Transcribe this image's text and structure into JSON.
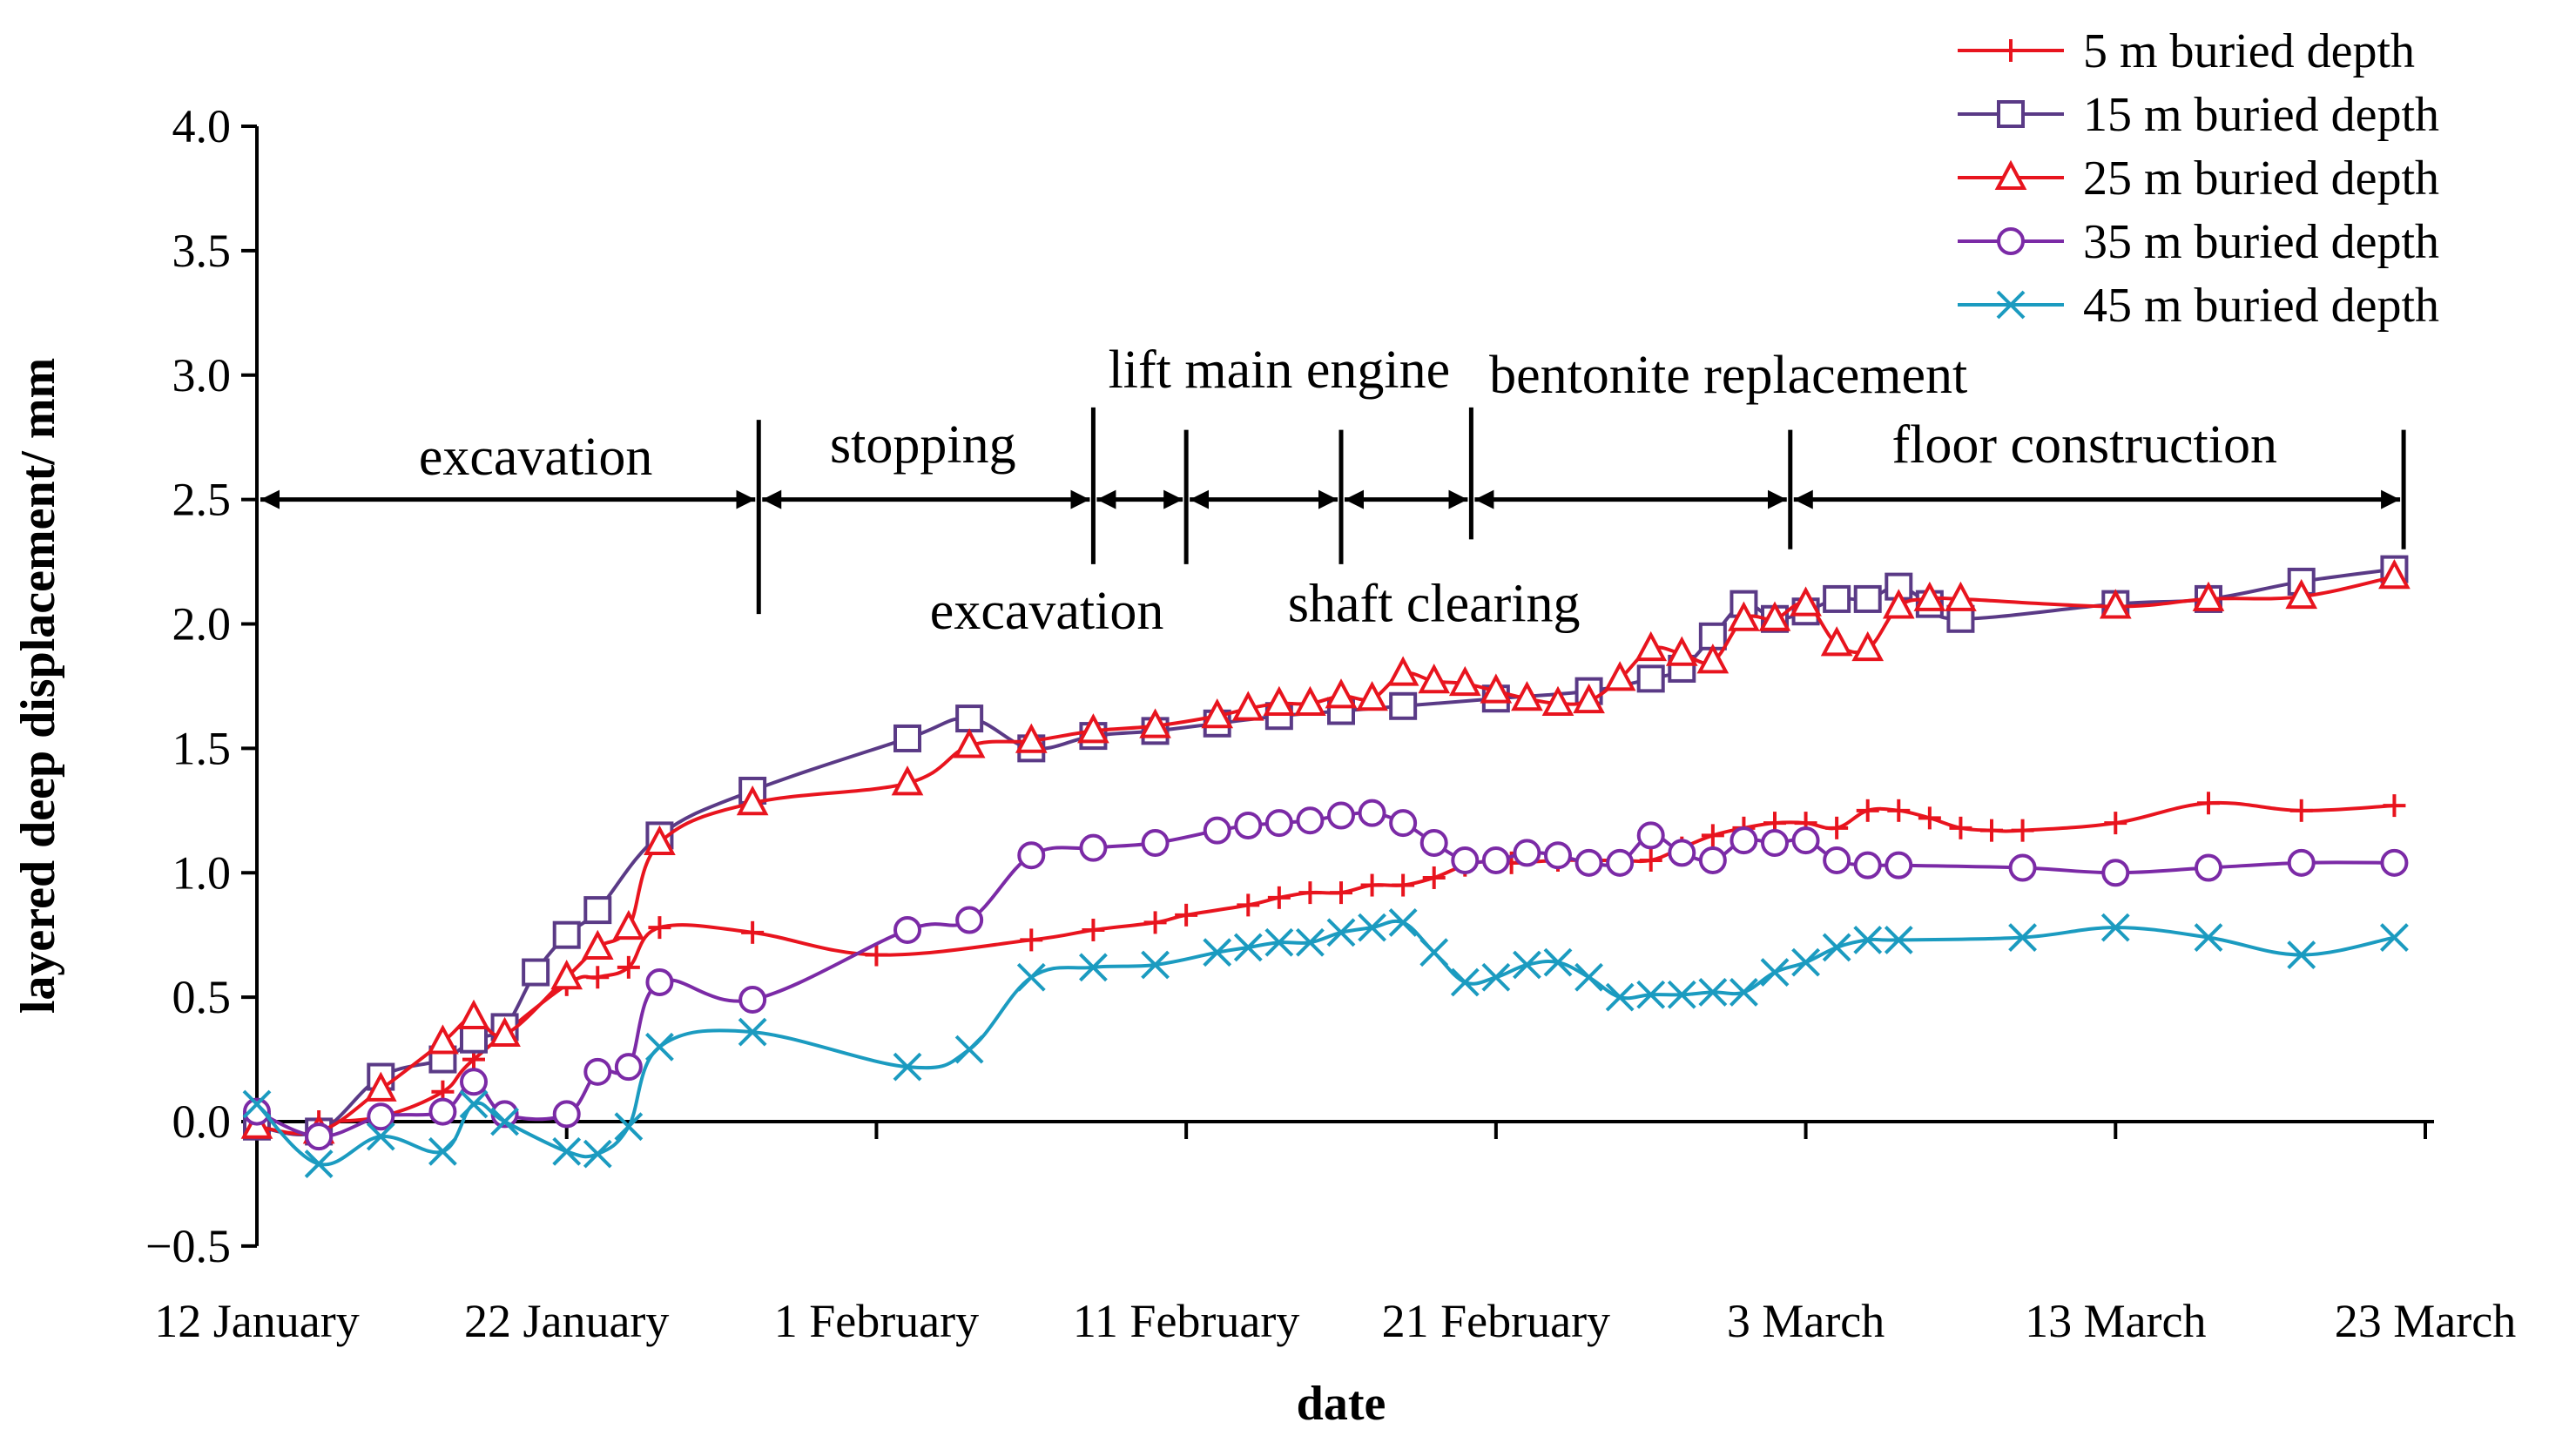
{
  "chart_data": {
    "type": "line",
    "title": "",
    "xlabel": "date",
    "ylabel": "layered deep displacement/ mm",
    "ylim": [
      -0.5,
      4.0
    ],
    "yticks": [
      -0.5,
      0.0,
      0.5,
      1.0,
      1.5,
      2.0,
      2.5,
      3.0,
      3.5,
      4.0
    ],
    "ytick_labels": [
      "−0.5",
      "0.0",
      "0.5",
      "1.0",
      "1.5",
      "2.0",
      "2.5",
      "3.0",
      "3.5",
      "4.0"
    ],
    "xlim": [
      0,
      70
    ],
    "xticks": [
      0,
      10,
      20,
      30,
      40,
      50,
      60,
      70
    ],
    "xtick_labels": [
      "12 January",
      "22 January",
      "1 February",
      "11 February",
      "21 February",
      "3 March",
      "13 March",
      "23 March"
    ],
    "x_unit": "days since 12 January",
    "legend_position": "top-right",
    "series": [
      {
        "name": "5 m buried depth",
        "color": "#e8141e",
        "marker": "plus",
        "x": [
          2,
          4,
          6,
          7,
          10,
          11,
          12,
          13,
          16,
          20,
          25,
          27,
          29,
          30,
          32,
          33,
          34,
          35,
          36,
          37,
          38,
          39,
          40,
          40.5,
          42,
          43,
          44,
          45,
          46,
          47,
          48,
          49,
          50,
          51,
          52,
          53,
          54,
          55,
          56,
          57,
          60,
          63,
          66,
          69
        ],
        "y": [
          0.0,
          0.02,
          0.12,
          0.25,
          0.55,
          0.58,
          0.62,
          0.78,
          0.76,
          0.67,
          0.73,
          0.77,
          0.8,
          0.83,
          0.87,
          0.9,
          0.92,
          0.92,
          0.95,
          0.95,
          0.98,
          1.03,
          1.05,
          1.04,
          1.05,
          1.05,
          1.05,
          1.05,
          1.1,
          1.15,
          1.18,
          1.2,
          1.2,
          1.18,
          1.25,
          1.25,
          1.22,
          1.18,
          1.17,
          1.17,
          1.2,
          1.28,
          1.25,
          1.27
        ]
      },
      {
        "name": "15 m buried depth",
        "color": "#5a3a86",
        "marker": "square",
        "x": [
          0,
          2,
          4,
          6,
          7,
          8,
          9,
          10,
          11,
          13,
          16,
          21,
          23,
          25,
          27,
          29,
          31,
          33,
          35,
          37,
          40,
          43,
          45,
          46,
          47,
          48,
          49,
          50,
          51,
          52,
          53,
          54,
          55,
          60,
          63,
          66,
          69
        ],
        "y": [
          -0.02,
          -0.04,
          0.18,
          0.25,
          0.33,
          0.38,
          0.6,
          0.75,
          0.85,
          1.15,
          1.33,
          1.54,
          1.62,
          1.5,
          1.55,
          1.57,
          1.6,
          1.63,
          1.65,
          1.67,
          1.7,
          1.73,
          1.78,
          1.82,
          1.95,
          2.08,
          2.02,
          2.05,
          2.1,
          2.1,
          2.15,
          2.08,
          2.02,
          2.08,
          2.1,
          2.17,
          2.22
        ]
      },
      {
        "name": "25 m buried depth",
        "color": "#e8141e",
        "marker": "triangle",
        "x": [
          0,
          2,
          4,
          6,
          7,
          8,
          10,
          11,
          12,
          13,
          16,
          21,
          23,
          25,
          27,
          29,
          31,
          32,
          33,
          34,
          35,
          36,
          37,
          38,
          39,
          40,
          41,
          42,
          43,
          44,
          45,
          46,
          47,
          48,
          49,
          50,
          51,
          52,
          53,
          54,
          55,
          60,
          63,
          66,
          69
        ],
        "y": [
          -0.02,
          -0.04,
          0.13,
          0.32,
          0.42,
          0.35,
          0.58,
          0.7,
          0.78,
          1.12,
          1.28,
          1.36,
          1.51,
          1.53,
          1.57,
          1.59,
          1.63,
          1.66,
          1.68,
          1.68,
          1.71,
          1.7,
          1.8,
          1.77,
          1.76,
          1.73,
          1.7,
          1.68,
          1.69,
          1.78,
          1.9,
          1.88,
          1.85,
          2.02,
          2.02,
          2.08,
          1.92,
          1.9,
          2.07,
          2.1,
          2.1,
          2.07,
          2.1,
          2.11,
          2.19
        ]
      },
      {
        "name": "35 m buried depth",
        "color": "#7b2aa6",
        "marker": "circle",
        "x": [
          0,
          2,
          4,
          6,
          7,
          8,
          10,
          11,
          12,
          13,
          16,
          21,
          23,
          25,
          27,
          29,
          31,
          32,
          33,
          34,
          35,
          36,
          37,
          38,
          39,
          40,
          41,
          42,
          43,
          44,
          45,
          46,
          47,
          48,
          49,
          50,
          51,
          52,
          53,
          57,
          60,
          63,
          66,
          69
        ],
        "y": [
          0.04,
          -0.06,
          0.02,
          0.04,
          0.16,
          0.03,
          0.03,
          0.2,
          0.22,
          0.56,
          0.49,
          0.77,
          0.81,
          1.07,
          1.1,
          1.12,
          1.17,
          1.19,
          1.2,
          1.21,
          1.23,
          1.24,
          1.2,
          1.12,
          1.05,
          1.05,
          1.08,
          1.07,
          1.04,
          1.04,
          1.15,
          1.08,
          1.05,
          1.13,
          1.12,
          1.13,
          1.05,
          1.03,
          1.03,
          1.02,
          1.0,
          1.02,
          1.04,
          1.04
        ]
      },
      {
        "name": "45 m buried depth",
        "color": "#1b9bc0",
        "marker": "x",
        "x": [
          0,
          2,
          4,
          6,
          7,
          8,
          10,
          11,
          12,
          13,
          16,
          21,
          23,
          25,
          27,
          29,
          31,
          32,
          33,
          34,
          35,
          36,
          37,
          38,
          39,
          40,
          41,
          42,
          43,
          44,
          45,
          46,
          47,
          48,
          49,
          50,
          51,
          52,
          53,
          57,
          60,
          63,
          66,
          69
        ],
        "y": [
          0.07,
          -0.17,
          -0.06,
          -0.12,
          0.07,
          0.0,
          -0.12,
          -0.13,
          -0.02,
          0.3,
          0.36,
          0.22,
          0.29,
          0.58,
          0.62,
          0.63,
          0.68,
          0.7,
          0.72,
          0.72,
          0.76,
          0.78,
          0.8,
          0.68,
          0.56,
          0.58,
          0.63,
          0.64,
          0.58,
          0.5,
          0.51,
          0.51,
          0.52,
          0.52,
          0.6,
          0.64,
          0.7,
          0.73,
          0.73,
          0.74,
          0.78,
          0.74,
          0.67,
          0.74
        ]
      }
    ],
    "annotations": {
      "phase_labels": [
        {
          "text": "excavation",
          "x": 9,
          "y": 2.67
        },
        {
          "text": "stopping",
          "x": 21.5,
          "y": 2.72
        },
        {
          "text": "lift main engine",
          "x": 33,
          "y": 3.02
        },
        {
          "text": "bentonite replacement",
          "x": 47.5,
          "y": 3.0
        },
        {
          "text": "floor construction",
          "x": 59,
          "y": 2.72
        },
        {
          "text": "excavation",
          "x": 25.5,
          "y": 2.05
        },
        {
          "text": "shaft clearing",
          "x": 38,
          "y": 2.08
        }
      ],
      "phase_boundaries": [
        {
          "x": 16.2,
          "y_top": 2.82,
          "y_bottom": 2.04
        },
        {
          "x": 27,
          "y_top": 2.87,
          "y_bottom": 2.24
        },
        {
          "x": 30,
          "y_top": 2.78,
          "y_bottom": 2.24
        },
        {
          "x": 35,
          "y_top": 2.78,
          "y_bottom": 2.24
        },
        {
          "x": 39.2,
          "y_top": 2.87,
          "y_bottom": 2.34
        },
        {
          "x": 49.5,
          "y_top": 2.78,
          "y_bottom": 2.3
        },
        {
          "x": 69.3,
          "y_top": 2.78,
          "y_bottom": 2.3
        }
      ],
      "phase_arrow_level": 2.5,
      "phase_segments": [
        [
          0,
          16.2
        ],
        [
          16.2,
          27
        ],
        [
          27,
          30
        ],
        [
          30,
          35
        ],
        [
          35,
          39.2
        ],
        [
          39.2,
          49.5
        ],
        [
          49.5,
          69.3
        ]
      ]
    }
  }
}
